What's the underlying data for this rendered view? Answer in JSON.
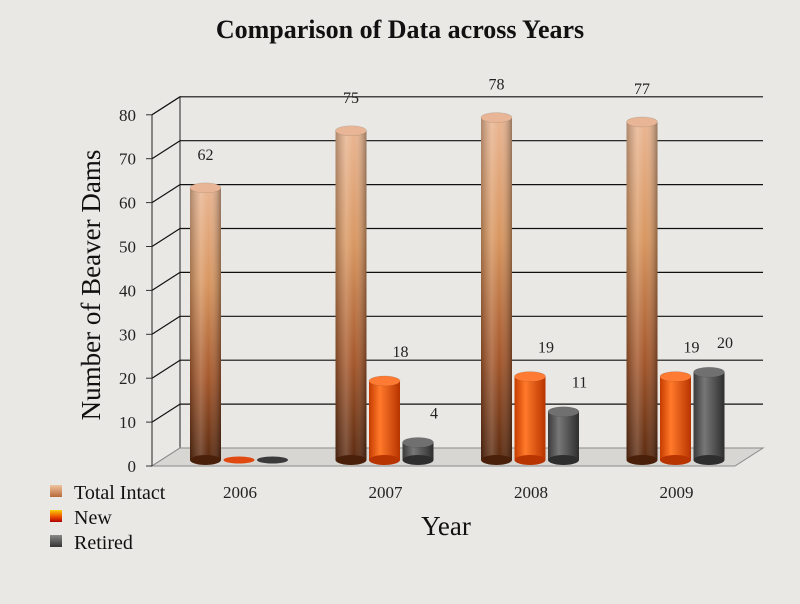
{
  "chart_data": {
    "type": "bar",
    "title": "Comparison of Data across Years",
    "xlabel": "Year",
    "ylabel": "Number of Beaver Dams",
    "categories": [
      "2006",
      "2007",
      "2008",
      "2009"
    ],
    "series": [
      {
        "name": "Total Intact",
        "values": [
          62,
          75,
          78,
          77
        ],
        "labels": [
          "62",
          "75",
          "78",
          "77"
        ],
        "color": "#c9825a"
      },
      {
        "name": "New",
        "values": [
          0,
          18,
          19,
          19
        ],
        "labels": [
          "",
          "18",
          "19",
          "19"
        ],
        "color": "#f25a0f"
      },
      {
        "name": "Retired",
        "values": [
          0,
          4,
          11,
          20
        ],
        "labels": [
          "",
          "4",
          "11",
          "20"
        ],
        "color": "#4f4f4f"
      }
    ],
    "ylim": [
      0,
      80
    ],
    "yticks": [
      0,
      10,
      20,
      30,
      40,
      50,
      60,
      70,
      80
    ],
    "grid": true,
    "legend_position": "bottom-left",
    "style": "3d-cylinder"
  }
}
